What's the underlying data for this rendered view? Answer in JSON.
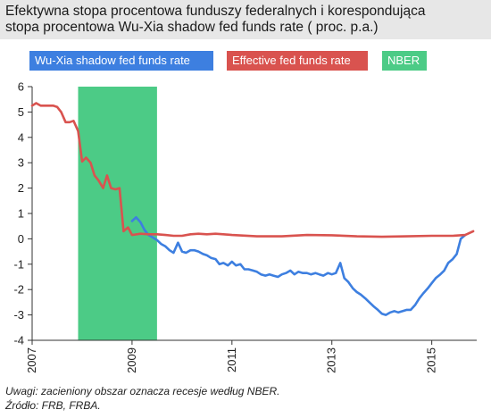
{
  "title": {
    "line1": "Efektywna stopa procentowa funduszy federalnych i korespondująca",
    "line2": "stopa procentowa Wu-Xia shadow fed funds rate ( proc. p.a.)"
  },
  "notes": {
    "line1": "Uwagi: zacieniony obszar oznacza recesje według NBER.",
    "line2": "Źródło: FRB, FRBA."
  },
  "colors": {
    "shadow": "#3d7fe0",
    "effective": "#d9534f",
    "nber": "#4ccb86",
    "title_bg": "#e7e7e7"
  },
  "chart_data": {
    "type": "line",
    "title": "Efektywna stopa procentowa funduszy federalnych i korespondująca stopa procentowa Wu-Xia shadow fed funds rate ( proc. p.a.)",
    "xlabel": "",
    "ylabel": "",
    "xlim": [
      2007,
      2015.9
    ],
    "ylim": [
      -4,
      6
    ],
    "x_ticks": [
      "2007",
      "2009",
      "2011",
      "2013",
      "2015"
    ],
    "y_ticks": [
      "6",
      "5",
      "4",
      "3",
      "2",
      "1",
      "0",
      "-1",
      "-2",
      "-3",
      "-4"
    ],
    "legend_position": "top",
    "grid": false,
    "recession": {
      "label": "NBER",
      "start": 2007.92,
      "end": 2009.5
    },
    "series": [
      {
        "name": "Wu-Xia shadow fed funds rate",
        "x": [
          2009.0,
          2009.08,
          2009.17,
          2009.25,
          2009.33,
          2009.42,
          2009.5,
          2009.58,
          2009.67,
          2009.75,
          2009.83,
          2009.92,
          2010.0,
          2010.08,
          2010.17,
          2010.25,
          2010.33,
          2010.42,
          2010.5,
          2010.58,
          2010.67,
          2010.75,
          2010.83,
          2010.92,
          2011.0,
          2011.08,
          2011.17,
          2011.25,
          2011.33,
          2011.42,
          2011.5,
          2011.58,
          2011.67,
          2011.75,
          2011.83,
          2011.92,
          2012.0,
          2012.08,
          2012.17,
          2012.25,
          2012.33,
          2012.42,
          2012.5,
          2012.58,
          2012.67,
          2012.75,
          2012.83,
          2012.92,
          2013.0,
          2013.08,
          2013.17,
          2013.25,
          2013.33,
          2013.42,
          2013.5,
          2013.58,
          2013.67,
          2013.75,
          2013.83,
          2013.92,
          2014.0,
          2014.08,
          2014.17,
          2014.25,
          2014.33,
          2014.42,
          2014.5,
          2014.58,
          2014.67,
          2014.75,
          2014.83,
          2014.92,
          2015.0,
          2015.08,
          2015.17,
          2015.25,
          2015.33,
          2015.42,
          2015.5,
          2015.58,
          2015.67
        ],
        "values": [
          0.7,
          0.85,
          0.65,
          0.35,
          0.15,
          0.05,
          -0.05,
          -0.2,
          -0.3,
          -0.45,
          -0.55,
          -0.15,
          -0.5,
          -0.55,
          -0.45,
          -0.45,
          -0.5,
          -0.6,
          -0.65,
          -0.75,
          -0.8,
          -1.0,
          -0.95,
          -1.05,
          -0.9,
          -1.05,
          -1.0,
          -1.2,
          -1.2,
          -1.25,
          -1.3,
          -1.4,
          -1.45,
          -1.4,
          -1.45,
          -1.5,
          -1.4,
          -1.35,
          -1.25,
          -1.4,
          -1.3,
          -1.35,
          -1.35,
          -1.4,
          -1.35,
          -1.4,
          -1.45,
          -1.35,
          -1.4,
          -1.35,
          -0.95,
          -1.55,
          -1.7,
          -1.95,
          -2.1,
          -2.2,
          -2.35,
          -2.5,
          -2.65,
          -2.8,
          -2.95,
          -3.0,
          -2.9,
          -2.85,
          -2.9,
          -2.85,
          -2.8,
          -2.8,
          -2.6,
          -2.35,
          -2.15,
          -1.95,
          -1.75,
          -1.55,
          -1.4,
          -1.25,
          -0.95,
          -0.8,
          -0.6,
          0.0,
          0.15
        ]
      },
      {
        "name": "Effective fed funds rate",
        "x": [
          2007.0,
          2007.08,
          2007.17,
          2007.25,
          2007.33,
          2007.42,
          2007.5,
          2007.58,
          2007.67,
          2007.75,
          2007.83,
          2007.92,
          2008.0,
          2008.08,
          2008.17,
          2008.25,
          2008.33,
          2008.42,
          2008.5,
          2008.58,
          2008.67,
          2008.75,
          2008.83,
          2008.92,
          2009.0,
          2009.17,
          2009.33,
          2009.5,
          2009.67,
          2009.83,
          2010.0,
          2010.17,
          2010.33,
          2010.5,
          2010.67,
          2010.83,
          2011.0,
          2011.5,
          2012.0,
          2012.5,
          2013.0,
          2013.5,
          2014.0,
          2014.5,
          2015.0,
          2015.42,
          2015.67,
          2015.83
        ],
        "values": [
          5.25,
          5.35,
          5.25,
          5.25,
          5.25,
          5.25,
          5.2,
          5.0,
          4.6,
          4.6,
          4.65,
          4.25,
          3.05,
          3.2,
          3.0,
          2.5,
          2.3,
          2.0,
          2.5,
          2.0,
          1.95,
          2.0,
          0.3,
          0.45,
          0.15,
          0.2,
          0.18,
          0.18,
          0.15,
          0.12,
          0.12,
          0.18,
          0.2,
          0.18,
          0.2,
          0.18,
          0.15,
          0.1,
          0.1,
          0.15,
          0.14,
          0.1,
          0.08,
          0.1,
          0.12,
          0.12,
          0.15,
          0.3
        ]
      }
    ]
  }
}
